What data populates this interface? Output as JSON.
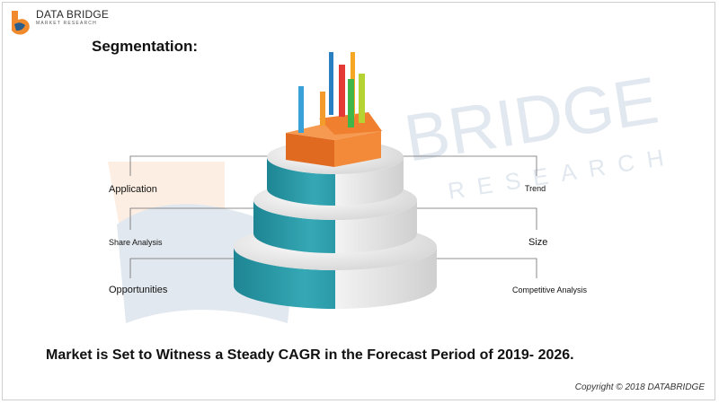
{
  "brand": {
    "name": "DATA BRIDGE",
    "tagline": "MARKET RESEARCH",
    "watermark_main": "BRIDGE",
    "watermark_sub": "RESEARCH"
  },
  "slide": {
    "title": "Segmentation:",
    "headline": "Market is Set to Witness a Steady CAGR in the Forecast Period of 2019- 2026.",
    "copyright": "Copyright © 2018 DATABRIDGE"
  },
  "segments": {
    "left": [
      "Application",
      "Share Analysis",
      "Opportunities"
    ],
    "right": [
      "Trend",
      "Size",
      "Competitive Analysis"
    ]
  },
  "colors": {
    "teal": "#2a9aa8",
    "teal_dark": "#1f7f8c",
    "grey": "#e8e8e8",
    "orange": "#ef7a2d",
    "logo_orange": "#f08a2c",
    "logo_blue": "#2b5c8a"
  }
}
